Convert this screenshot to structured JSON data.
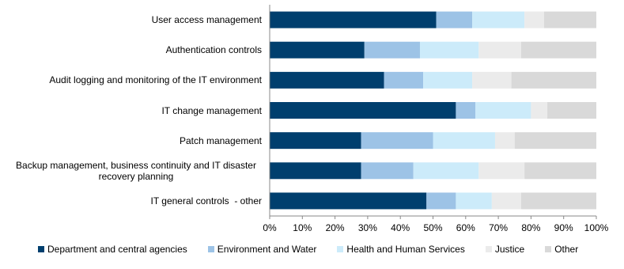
{
  "chart_data": {
    "type": "stacked-bar-horizontal",
    "categories": [
      "User access management",
      "Authentication controls",
      "Audit logging and monitoring of the IT environment",
      "IT change management",
      "Patch management",
      "Backup management, business continuity and IT disaster recovery planning",
      "IT general controls  - other"
    ],
    "series": [
      {
        "name": "Department and central agencies",
        "color": "#003f6e",
        "values": [
          51,
          29,
          35,
          57,
          28,
          28,
          48
        ]
      },
      {
        "name": "Environment and Water",
        "color": "#9dc3e6",
        "values": [
          11,
          17,
          12,
          6,
          22,
          16,
          9
        ]
      },
      {
        "name": "Health and Human Services",
        "color": "#ccebfa",
        "values": [
          16,
          18,
          15,
          17,
          19,
          20,
          11
        ]
      },
      {
        "name": "Justice",
        "color": "#ebebeb",
        "values": [
          6,
          13,
          12,
          5,
          6,
          14,
          9
        ]
      },
      {
        "name": "Other",
        "color": "#d9d9d9",
        "values": [
          16,
          23,
          26,
          15,
          25,
          22,
          23
        ]
      }
    ],
    "xlim": [
      0,
      100
    ],
    "xticks": [
      {
        "value": 0,
        "label": "0%"
      },
      {
        "value": 10,
        "label": "10%"
      },
      {
        "value": 20,
        "label": "20%"
      },
      {
        "value": 30,
        "label": "30%"
      },
      {
        "value": 40,
        "label": "40%"
      },
      {
        "value": 50,
        "label": "50%"
      },
      {
        "value": 60,
        "label": "60%"
      },
      {
        "value": 70,
        "label": "70%"
      },
      {
        "value": 80,
        "label": "80%"
      },
      {
        "value": 90,
        "label": "90%"
      },
      {
        "value": 100,
        "label": "100%"
      }
    ],
    "grid": false,
    "legend": "bottom"
  }
}
